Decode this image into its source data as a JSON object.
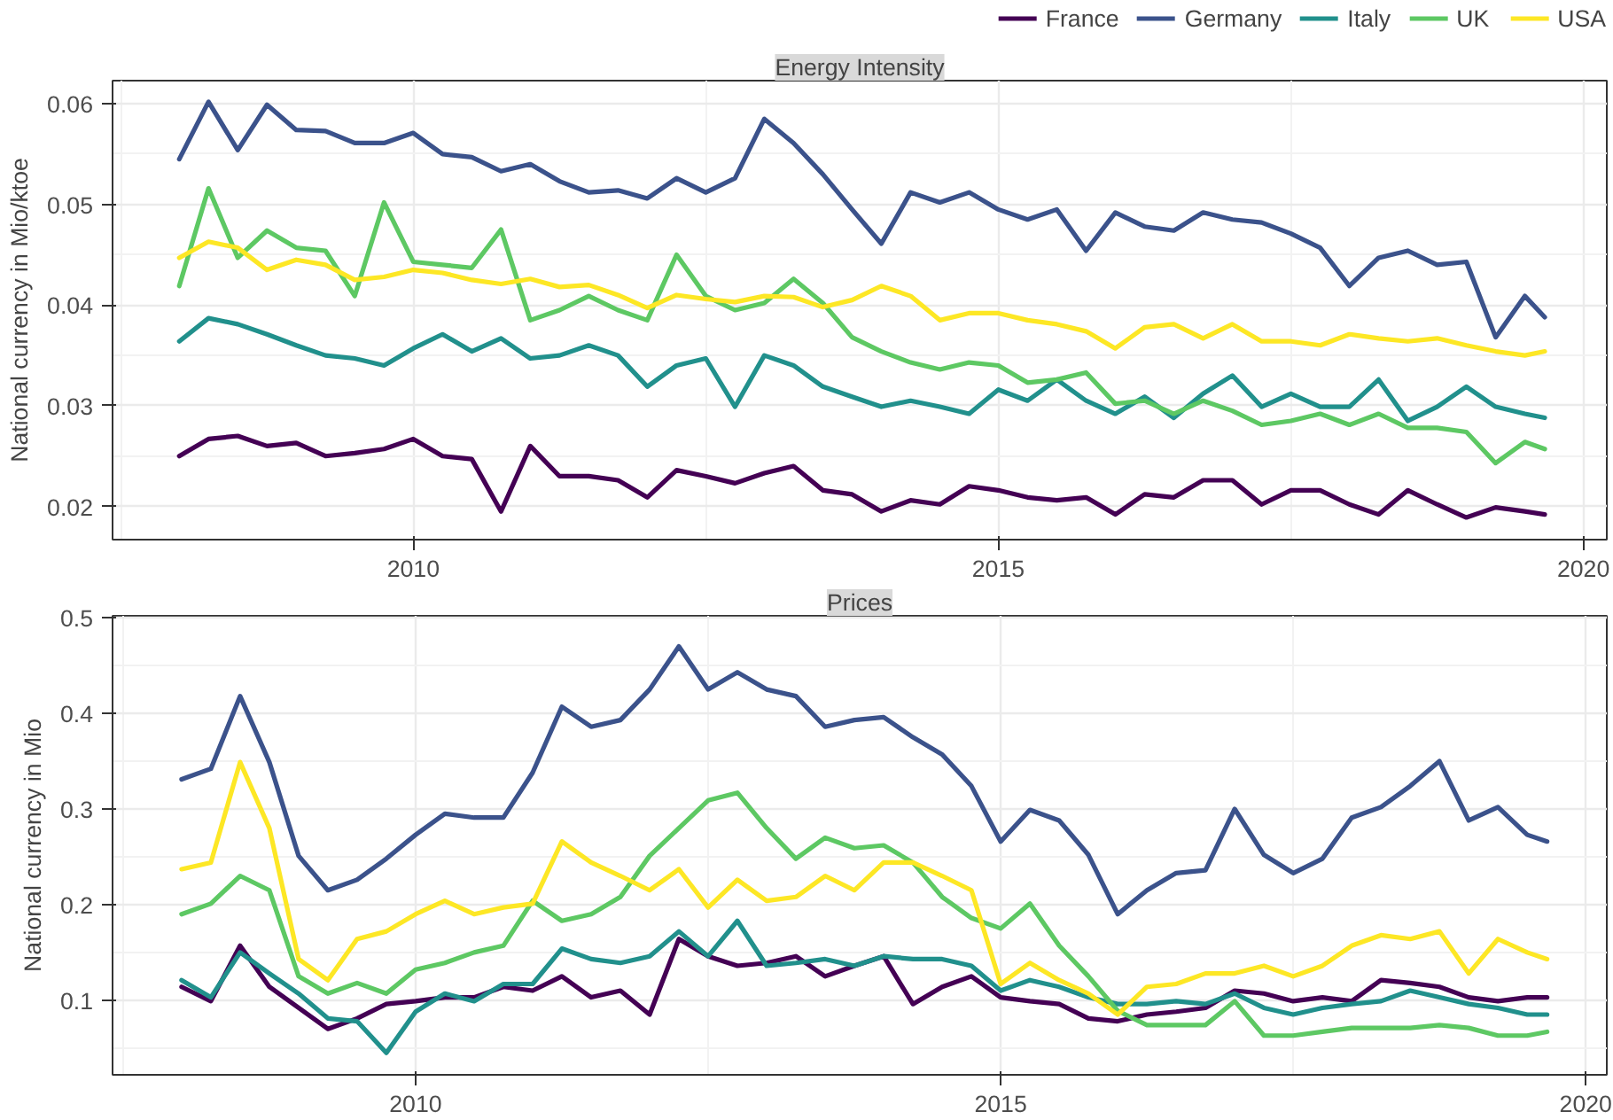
{
  "chart_data": [
    {
      "type": "line",
      "title": "Energy Intensity",
      "ylabel": "National currency in Mio/ktoe",
      "legend": "top right",
      "grid": true,
      "line_style": "solid",
      "x": [
        2008.0,
        2008.25,
        2008.5,
        2008.75,
        2009.0,
        2009.25,
        2009.5,
        2009.75,
        2010.0,
        2010.25,
        2010.5,
        2010.75,
        2011.0,
        2011.25,
        2011.5,
        2011.75,
        2012.0,
        2012.25,
        2012.5,
        2012.75,
        2013.0,
        2013.25,
        2013.5,
        2013.75,
        2014.0,
        2014.25,
        2014.5,
        2014.75,
        2015.0,
        2015.25,
        2015.5,
        2015.75,
        2016.0,
        2016.25,
        2016.5,
        2016.75,
        2017.0,
        2017.25,
        2017.5,
        2017.75,
        2018.0,
        2018.25,
        2018.5,
        2018.75,
        2019.0,
        2019.25,
        2019.5,
        2019.67
      ],
      "xlim": [
        2007.43,
        2020.2
      ],
      "xticks": [
        2010,
        2015,
        2020
      ],
      "ylim": [
        0.0167,
        0.0623
      ],
      "yticks": [
        0.02,
        0.03,
        0.04,
        0.05,
        0.06
      ],
      "series": [
        {
          "name": "France",
          "color": "#440154",
          "values": [
            0.025,
            0.0267,
            0.027,
            0.026,
            0.0263,
            0.025,
            0.0253,
            0.0257,
            0.0267,
            0.025,
            0.0247,
            0.0195,
            0.026,
            0.023,
            0.023,
            0.0226,
            0.0209,
            0.0236,
            0.023,
            0.0223,
            0.0233,
            0.024,
            0.0216,
            0.0212,
            0.0195,
            0.0206,
            0.0202,
            0.022,
            0.0216,
            0.0209,
            0.0206,
            0.0209,
            0.0192,
            0.0212,
            0.0209,
            0.0226,
            0.0226,
            0.0202,
            0.0216,
            0.0216,
            0.0202,
            0.0192,
            0.0216,
            0.0202,
            0.0189,
            0.0199,
            0.0195,
            0.0192
          ]
        },
        {
          "name": "Germany",
          "color": "#3b528b",
          "values": [
            0.0545,
            0.0602,
            0.0554,
            0.0599,
            0.0574,
            0.0573,
            0.0561,
            0.0561,
            0.0571,
            0.055,
            0.0547,
            0.0533,
            0.054,
            0.0523,
            0.0512,
            0.0514,
            0.0506,
            0.0526,
            0.0512,
            0.0526,
            0.0585,
            0.0561,
            0.053,
            0.0495,
            0.0461,
            0.0512,
            0.0502,
            0.0512,
            0.0495,
            0.0485,
            0.0495,
            0.0454,
            0.0492,
            0.0478,
            0.0474,
            0.0492,
            0.0485,
            0.0482,
            0.0471,
            0.0457,
            0.0419,
            0.0447,
            0.0454,
            0.044,
            0.0443,
            0.0368,
            0.0409,
            0.0388
          ]
        },
        {
          "name": "Italy",
          "color": "#21908c",
          "values": [
            0.0364,
            0.0387,
            0.0381,
            0.0371,
            0.036,
            0.035,
            0.0347,
            0.034,
            0.0357,
            0.0371,
            0.0354,
            0.0367,
            0.0347,
            0.035,
            0.036,
            0.035,
            0.0319,
            0.034,
            0.0347,
            0.0299,
            0.035,
            0.034,
            0.0319,
            0.0309,
            0.0299,
            0.0305,
            0.0299,
            0.0292,
            0.0316,
            0.0305,
            0.0326,
            0.0305,
            0.0292,
            0.0309,
            0.0288,
            0.0312,
            0.033,
            0.0299,
            0.0312,
            0.0299,
            0.0299,
            0.0326,
            0.0285,
            0.0299,
            0.0319,
            0.0299,
            0.0292,
            0.0288
          ]
        },
        {
          "name": "UK",
          "color": "#5dc863",
          "values": [
            0.0419,
            0.0516,
            0.0447,
            0.0474,
            0.0457,
            0.0454,
            0.0409,
            0.0502,
            0.0443,
            0.044,
            0.0437,
            0.0475,
            0.0385,
            0.0395,
            0.0409,
            0.0395,
            0.0385,
            0.045,
            0.0409,
            0.0395,
            0.0402,
            0.0426,
            0.0402,
            0.0368,
            0.0354,
            0.0343,
            0.0336,
            0.0343,
            0.034,
            0.0323,
            0.0326,
            0.0333,
            0.0302,
            0.0305,
            0.0292,
            0.0305,
            0.0295,
            0.0281,
            0.0285,
            0.0292,
            0.0281,
            0.0292,
            0.0278,
            0.0278,
            0.0274,
            0.0243,
            0.0264,
            0.0257
          ]
        },
        {
          "name": "USA",
          "color": "#fde725",
          "values": [
            0.0447,
            0.0463,
            0.0457,
            0.0435,
            0.0445,
            0.044,
            0.0425,
            0.0428,
            0.0435,
            0.0432,
            0.0425,
            0.0421,
            0.0426,
            0.0418,
            0.042,
            0.041,
            0.0397,
            0.041,
            0.0406,
            0.0403,
            0.0409,
            0.0408,
            0.0398,
            0.0405,
            0.0419,
            0.0409,
            0.0385,
            0.0392,
            0.0392,
            0.0385,
            0.0381,
            0.0374,
            0.0357,
            0.0378,
            0.0381,
            0.0367,
            0.0381,
            0.0364,
            0.0364,
            0.036,
            0.0371,
            0.0367,
            0.0364,
            0.0367,
            0.036,
            0.0354,
            0.035,
            0.0354
          ]
        }
      ]
    },
    {
      "type": "line",
      "title": "Prices",
      "ylabel": "National currency in Mio",
      "grid": true,
      "line_style": "solid",
      "x": [
        2008.0,
        2008.25,
        2008.5,
        2008.75,
        2009.0,
        2009.25,
        2009.5,
        2009.75,
        2010.0,
        2010.25,
        2010.5,
        2010.75,
        2011.0,
        2011.25,
        2011.5,
        2011.75,
        2012.0,
        2012.25,
        2012.5,
        2012.75,
        2013.0,
        2013.25,
        2013.5,
        2013.75,
        2014.0,
        2014.25,
        2014.5,
        2014.75,
        2015.0,
        2015.25,
        2015.5,
        2015.75,
        2016.0,
        2016.25,
        2016.5,
        2016.75,
        2017.0,
        2017.25,
        2017.5,
        2017.75,
        2018.0,
        2018.25,
        2018.5,
        2018.75,
        2019.0,
        2019.25,
        2019.5,
        2019.67
      ],
      "xlim": [
        2007.41,
        2020.18
      ],
      "xticks": [
        2010,
        2015,
        2020
      ],
      "ylim": [
        0.022,
        0.502
      ],
      "yticks": [
        0.1,
        0.2,
        0.3,
        0.4,
        0.5
      ],
      "series": [
        {
          "color": "#440154",
          "values": [
            0.114,
            0.099,
            0.157,
            0.114,
            0.092,
            0.07,
            0.081,
            0.096,
            0.099,
            0.103,
            0.103,
            0.114,
            0.11,
            0.125,
            0.103,
            0.11,
            0.085,
            0.164,
            0.146,
            0.136,
            0.139,
            0.146,
            0.125,
            0.136,
            0.146,
            0.096,
            0.114,
            0.125,
            0.103,
            0.099,
            0.096,
            0.081,
            0.078,
            0.085,
            0.088,
            0.092,
            0.11,
            0.107,
            0.099,
            0.103,
            0.099,
            0.121,
            0.118,
            0.114,
            0.103,
            0.099,
            0.103,
            0.103
          ]
        },
        {
          "color": "#3b528b",
          "values": [
            0.331,
            0.342,
            0.418,
            0.349,
            0.251,
            0.215,
            0.226,
            0.248,
            0.273,
            0.295,
            0.291,
            0.291,
            0.338,
            0.407,
            0.386,
            0.393,
            0.425,
            0.47,
            0.425,
            0.443,
            0.425,
            0.418,
            0.386,
            0.393,
            0.396,
            0.375,
            0.357,
            0.324,
            0.266,
            0.299,
            0.288,
            0.252,
            0.19,
            0.215,
            0.233,
            0.236,
            0.3,
            0.252,
            0.233,
            0.248,
            0.291,
            0.302,
            0.324,
            0.35,
            0.288,
            0.302,
            0.273,
            0.266
          ]
        },
        {
          "color": "#21908c",
          "values": [
            0.121,
            0.103,
            0.15,
            0.128,
            0.107,
            0.081,
            0.078,
            0.045,
            0.088,
            0.107,
            0.099,
            0.117,
            0.117,
            0.154,
            0.143,
            0.139,
            0.146,
            0.172,
            0.146,
            0.183,
            0.136,
            0.139,
            0.143,
            0.136,
            0.146,
            0.143,
            0.143,
            0.136,
            0.11,
            0.121,
            0.114,
            0.103,
            0.096,
            0.096,
            0.099,
            0.096,
            0.107,
            0.092,
            0.085,
            0.092,
            0.096,
            0.099,
            0.11,
            0.103,
            0.096,
            0.092,
            0.085,
            0.085
          ]
        },
        {
          "color": "#5dc863",
          "values": [
            0.19,
            0.201,
            0.23,
            0.215,
            0.125,
            0.107,
            0.118,
            0.107,
            0.132,
            0.139,
            0.15,
            0.157,
            0.204,
            0.183,
            0.19,
            0.208,
            0.251,
            0.28,
            0.309,
            0.317,
            0.28,
            0.248,
            0.27,
            0.259,
            0.262,
            0.244,
            0.208,
            0.186,
            0.175,
            0.201,
            0.157,
            0.125,
            0.089,
            0.074,
            0.074,
            0.074,
            0.099,
            0.063,
            0.063,
            0.067,
            0.071,
            0.071,
            0.071,
            0.074,
            0.071,
            0.063,
            0.063,
            0.067
          ]
        },
        {
          "color": "#fde725",
          "values": [
            0.237,
            0.244,
            0.349,
            0.28,
            0.143,
            0.121,
            0.164,
            0.172,
            0.19,
            0.204,
            0.19,
            0.197,
            0.201,
            0.266,
            0.244,
            0.23,
            0.215,
            0.237,
            0.197,
            0.226,
            0.204,
            0.208,
            0.23,
            0.215,
            0.244,
            0.244,
            0.23,
            0.215,
            0.117,
            0.139,
            0.121,
            0.107,
            0.085,
            0.114,
            0.117,
            0.128,
            0.128,
            0.136,
            0.125,
            0.136,
            0.157,
            0.168,
            0.164,
            0.172,
            0.128,
            0.164,
            0.15,
            0.143
          ]
        }
      ]
    }
  ]
}
